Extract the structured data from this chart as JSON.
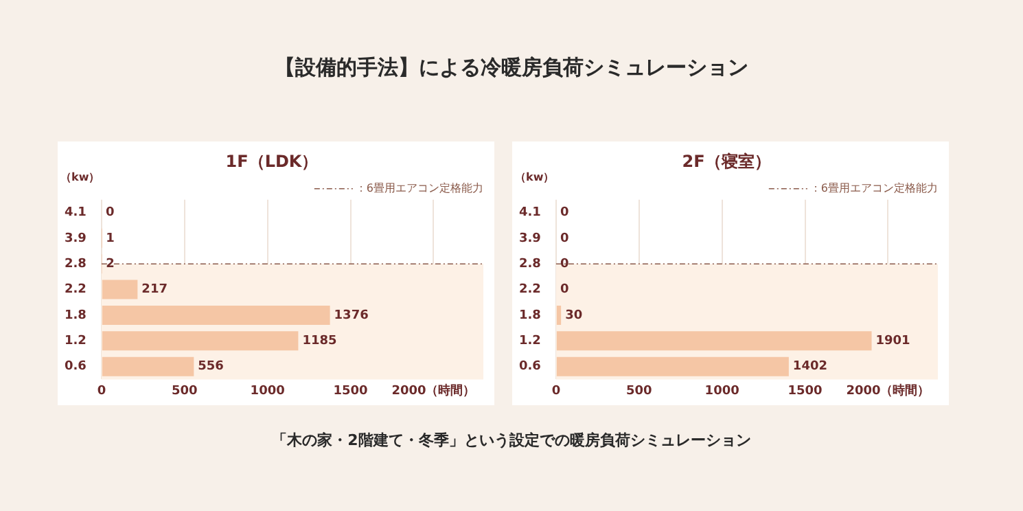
{
  "chart_data": [
    {
      "type": "other",
      "title": "【設備的手法】による冷暖房負荷シミュレーション",
      "annotations": [
        "「木の家・2階建て・冬季」という設定での暖房負荷シミュレーション"
      ]
    },
    {
      "type": "bar",
      "orientation": "horizontal",
      "title": "1F（LDK）",
      "ylabel": "（kw）",
      "categories": [
        "4.1",
        "3.9",
        "2.8",
        "2.2",
        "1.8",
        "1.2",
        "0.6"
      ],
      "values": [
        0,
        1,
        2,
        217,
        1376,
        1185,
        556
      ],
      "color": "#f5c6a5",
      "data_labels": true,
      "xlim": [
        0,
        2300
      ],
      "xticks": [
        0,
        500,
        1000,
        1500,
        {
          "value": 2000,
          "label": "2000（時間）"
        }
      ],
      "grid": "x",
      "ref_lines": [
        {
          "axis": "y",
          "value": "2.8",
          "label": "：6畳用エアコン定格能力",
          "line_style": "dashed",
          "color": "#8a5a4a"
        }
      ],
      "bands": [
        {
          "axis": "y",
          "from": "2.8",
          "to": "0.6",
          "color": "#fdf1e6"
        }
      ]
    },
    {
      "type": "bar",
      "orientation": "horizontal",
      "title": "2F（寝室）",
      "ylabel": "（kw）",
      "categories": [
        "4.1",
        "3.9",
        "2.8",
        "2.2",
        "1.8",
        "1.2",
        "0.6"
      ],
      "values": [
        0,
        0,
        0,
        0,
        30,
        1901,
        1402
      ],
      "color": "#f5c6a5",
      "data_labels": true,
      "xlim": [
        0,
        2300
      ],
      "xticks": [
        0,
        500,
        1000,
        1500,
        {
          "value": 2000,
          "label": "2000（時間）"
        }
      ],
      "grid": "x",
      "ref_lines": [
        {
          "axis": "y",
          "value": "2.8",
          "label": "：6畳用エアコン定格能力",
          "line_style": "dashed",
          "color": "#8a5a4a"
        }
      ],
      "bands": [
        {
          "axis": "y",
          "from": "2.8",
          "to": "0.6",
          "color": "#fdf1e6"
        }
      ]
    }
  ]
}
